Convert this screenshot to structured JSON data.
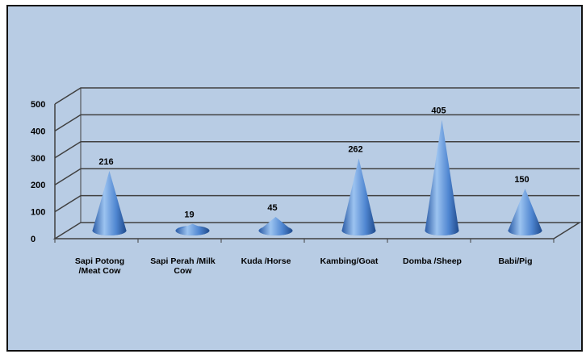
{
  "chart_data": {
    "type": "bar",
    "bar_shape": "cone",
    "view": "3d",
    "categories": [
      "Sapi Potong /Meat Cow",
      "Sapi Perah /Milk Cow",
      "Kuda /Horse",
      "Kambing/Goat",
      "Domba /Sheep",
      "Babi/Pig"
    ],
    "category_label_lines": [
      [
        "Sapi Potong",
        "/Meat Cow"
      ],
      [
        "Sapi Perah /Milk",
        "Cow"
      ],
      [
        "Kuda /Horse"
      ],
      [
        "Kambing/Goat"
      ],
      [
        "Domba /Sheep"
      ],
      [
        "Babi/Pig"
      ]
    ],
    "values": [
      216,
      19,
      45,
      262,
      405,
      150
    ],
    "data_labels": [
      "216",
      "19",
      "45",
      "262",
      "405",
      "150"
    ],
    "yticks": [
      "0",
      "100",
      "200",
      "300",
      "400",
      "500"
    ],
    "ylim": [
      0,
      500
    ],
    "title": "",
    "xlabel": "",
    "ylabel": "",
    "grid": true,
    "legend": "none",
    "colors": {
      "background": "#b8cce4",
      "border": "#111111",
      "gridline": "#404040",
      "cone_light": "#9cc3f0",
      "cone_mid": "#4f86d1",
      "cone_dark": "#1f4a8c"
    }
  }
}
